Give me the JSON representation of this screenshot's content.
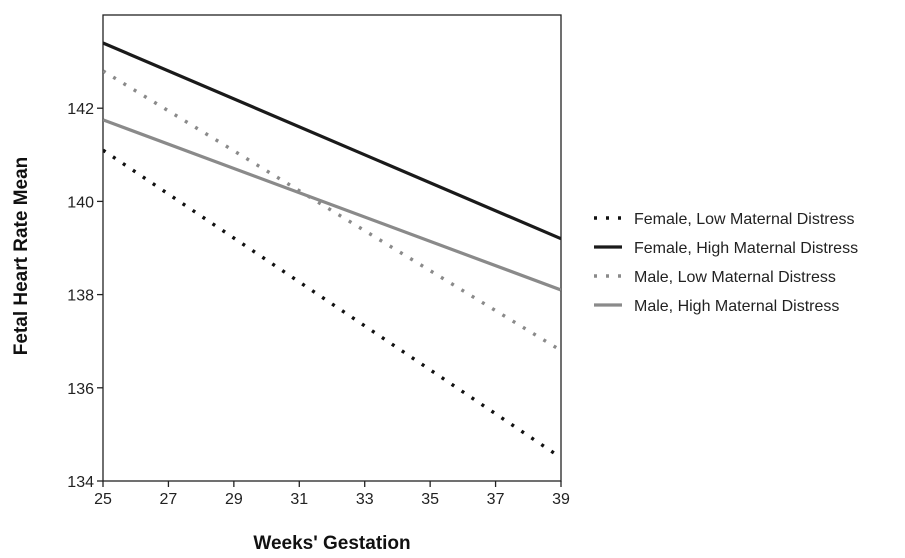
{
  "chart_data": {
    "type": "line",
    "title": "",
    "xlabel": "Weeks' Gestation",
    "ylabel": "Fetal Heart Rate Mean",
    "xlim": [
      25,
      39
    ],
    "ylim": [
      134,
      144
    ],
    "xticks": [
      25,
      27,
      29,
      31,
      33,
      35,
      37,
      39
    ],
    "yticks": [
      134,
      136,
      138,
      140,
      142
    ],
    "grid": false,
    "legend_position": "right",
    "series": [
      {
        "name": "Female, Low Maternal Distress",
        "color": "#111111",
        "style": "dotted",
        "x": [
          25,
          39
        ],
        "y": [
          141.1,
          134.5
        ]
      },
      {
        "name": "Female, High Maternal Distress",
        "color": "#1a1a1a",
        "style": "solid",
        "x": [
          25,
          39
        ],
        "y": [
          143.4,
          139.2
        ]
      },
      {
        "name": "Male, Low Maternal Distress",
        "color": "#8a8a8a",
        "style": "dotted",
        "x": [
          25,
          39
        ],
        "y": [
          142.8,
          136.8
        ]
      },
      {
        "name": "Male, High Maternal Distress",
        "color": "#8a8a8a",
        "style": "solid",
        "x": [
          25,
          39
        ],
        "y": [
          141.75,
          138.1
        ]
      }
    ]
  }
}
